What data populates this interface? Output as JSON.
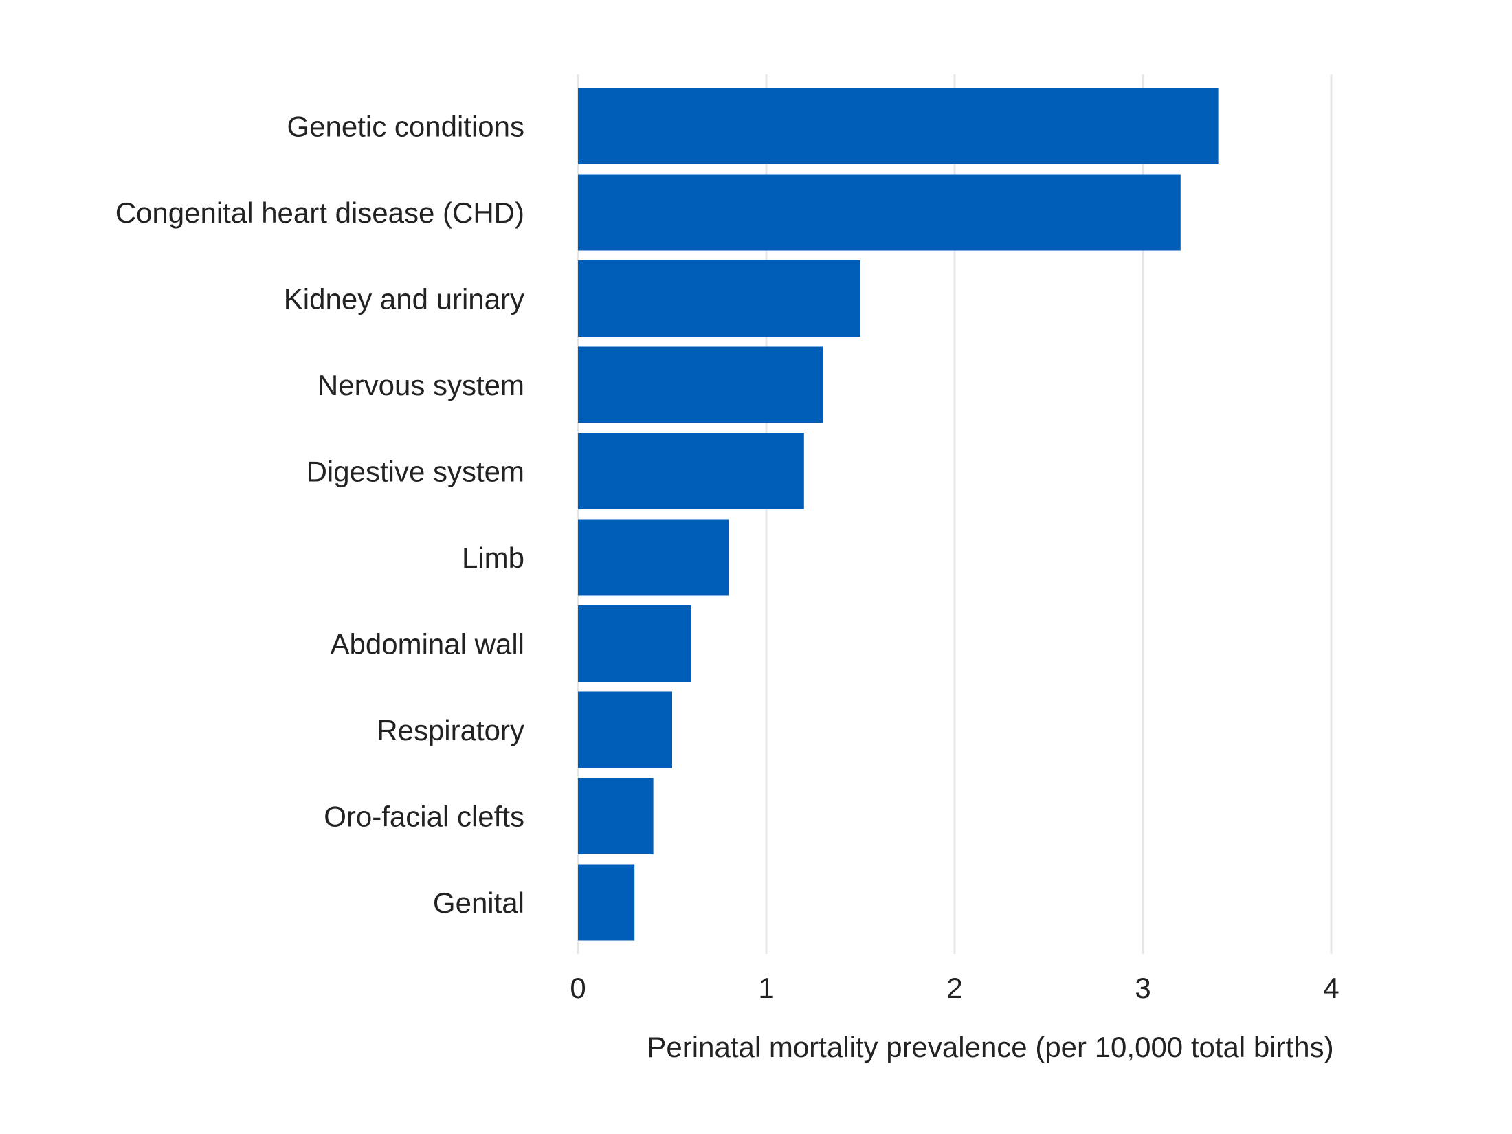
{
  "chart_data": {
    "type": "bar",
    "orientation": "horizontal",
    "title": "",
    "xlabel": "Perinatal mortality prevalence (per 10,000 total births)",
    "ylabel": "",
    "categories": [
      "Genetic conditions",
      "Congenital heart disease (CHD)",
      "Kidney and urinary",
      "Nervous system",
      "Digestive system",
      "Limb",
      "Abdominal wall",
      "Respiratory",
      "Oro-facial clefts",
      "Genital"
    ],
    "values": [
      3.4,
      3.2,
      1.5,
      1.3,
      1.2,
      0.8,
      0.6,
      0.5,
      0.4,
      0.3
    ],
    "xlim": [
      0,
      4
    ],
    "xticks": [
      "0",
      "1",
      "2",
      "3",
      "4"
    ],
    "grid": "vertical",
    "legend": "none",
    "bar_color": "#005EB8",
    "grid_color": "#E4E7E7"
  }
}
